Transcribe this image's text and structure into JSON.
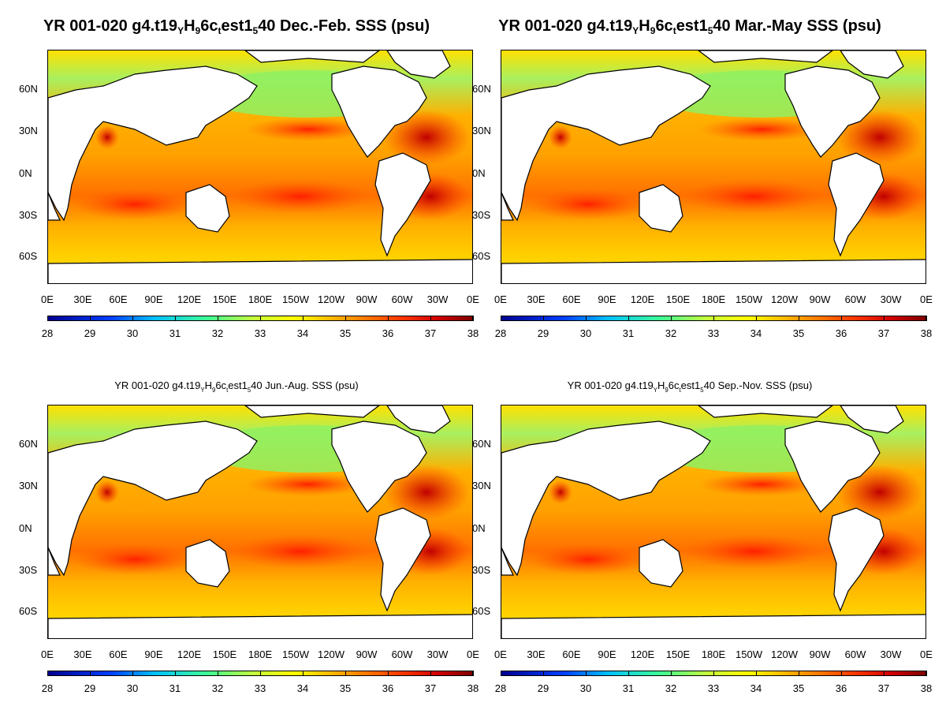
{
  "panels": [
    {
      "title_main": "YR 001-020 g4.t19",
      "title_sub1": "Y",
      "title_mid1": "H",
      "title_sub2": "9",
      "title_mid2": "6c",
      "title_sub3": "t",
      "title_mid3": "est1",
      "title_sub4": "5",
      "title_end": "40 Dec.-Feb. SSS (psu)",
      "title_size": "big"
    },
    {
      "title_main": "YR 001-020 g4.t19",
      "title_sub1": "Y",
      "title_mid1": "H",
      "title_sub2": "9",
      "title_mid2": "6c",
      "title_sub3": "t",
      "title_mid3": "est1",
      "title_sub4": "5",
      "title_end": "40 Mar.-May SSS (psu)",
      "title_size": "big"
    },
    {
      "title_main": "YR 001-020 g4.t19",
      "title_sub1": "Y",
      "title_mid1": "H",
      "title_sub2": "9",
      "title_mid2": "6c",
      "title_sub3": "t",
      "title_mid3": "est1",
      "title_sub4": "5",
      "title_end": "40 Jun.-Aug. SSS (psu)",
      "title_size": "small"
    },
    {
      "title_main": "YR 001-020 g4.t19",
      "title_sub1": "Y",
      "title_mid1": "H",
      "title_sub2": "9",
      "title_mid2": "6c",
      "title_sub3": "t",
      "title_mid3": "est1",
      "title_sub4": "5",
      "title_end": "40 Sep.-Nov. SSS (psu)",
      "title_size": "small"
    }
  ],
  "lat_labels": [
    "60N",
    "30N",
    "0N",
    "30S",
    "60S"
  ],
  "lon_labels": [
    "0E",
    "30E",
    "60E",
    "90E",
    "120E",
    "150E",
    "180E",
    "150W",
    "120W",
    "90W",
    "60W",
    "30W",
    "0E"
  ],
  "colorbar": {
    "labels": [
      "28",
      "29",
      "30",
      "31",
      "32",
      "33",
      "34",
      "35",
      "36",
      "37",
      "38"
    ],
    "min": 28,
    "max": 38,
    "colors": [
      "#00008f",
      "#0040ff",
      "#00c0ff",
      "#40ff90",
      "#c0ff40",
      "#ffff00",
      "#ffa000",
      "#ff4000",
      "#d00000",
      "#800000"
    ]
  },
  "map_extent": {
    "lon_min": 0,
    "lon_max": 360,
    "lat_min": -90,
    "lat_max": 80
  }
}
